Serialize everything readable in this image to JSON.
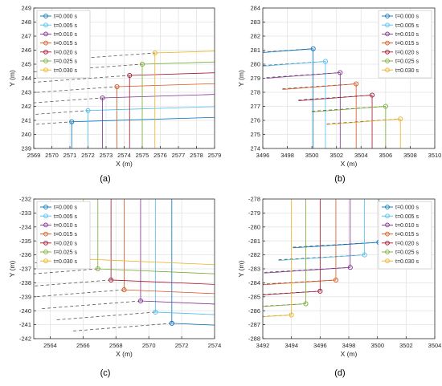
{
  "figure": {
    "colors": [
      "#0072BD",
      "#4DBEEE",
      "#7E2F8E",
      "#D95319",
      "#A2142F",
      "#77AC30",
      "#EDB120"
    ]
  },
  "chart_data": [
    {
      "type": "line",
      "panel_label": "(a)",
      "xlabel": "X (m)",
      "ylabel": "Y (m)",
      "xlim": [
        2569,
        2579
      ],
      "ylim": [
        239,
        249
      ],
      "xticks": [
        2569,
        2570,
        2571,
        2572,
        2573,
        2574,
        2575,
        2576,
        2577,
        2578,
        2579
      ],
      "yticks": [
        239,
        240,
        241,
        242,
        243,
        244,
        245,
        246,
        247,
        248,
        249
      ],
      "grid": true,
      "legend_position": "top-left",
      "traces": {
        "dashed_dx": -6,
        "solid_dx": 10,
        "solid_dy": 0.4,
        "vertical": "down"
      },
      "series": [
        {
          "name": "t=0.000 s",
          "x": 2571.1,
          "y": 240.9
        },
        {
          "name": "t=0.005 s",
          "x": 2572.0,
          "y": 241.7
        },
        {
          "name": "t=0.010 s",
          "x": 2572.8,
          "y": 242.6
        },
        {
          "name": "t=0.015 s",
          "x": 2573.6,
          "y": 243.4
        },
        {
          "name": "t=0.020 s",
          "x": 2574.3,
          "y": 244.2
        },
        {
          "name": "t=0.025 s",
          "x": 2575.0,
          "y": 245.0
        },
        {
          "name": "t=0.030 s",
          "x": 2575.7,
          "y": 245.8
        }
      ]
    },
    {
      "type": "line",
      "panel_label": "(b)",
      "xlabel": "X (m)",
      "ylabel": "Y (m)",
      "xlim": [
        3496,
        3510
      ],
      "ylim": [
        274,
        284
      ],
      "xticks": [
        3496,
        3498,
        3500,
        3502,
        3504,
        3506,
        3508,
        3510
      ],
      "yticks": [
        274,
        275,
        276,
        277,
        278,
        279,
        280,
        281,
        282,
        283,
        284
      ],
      "grid": true,
      "legend_position": "top-right",
      "traces": {
        "dashed_dx": -6,
        "solid_dx": -6,
        "solid_dy": -0.4,
        "vertical": "down"
      },
      "series": [
        {
          "name": "t=0.000 s",
          "x": 3500.1,
          "y": 281.1
        },
        {
          "name": "t=0.005 s",
          "x": 3501.1,
          "y": 280.2
        },
        {
          "name": "t=0.010 s",
          "x": 3502.3,
          "y": 279.4
        },
        {
          "name": "t=0.015 s",
          "x": 3503.6,
          "y": 278.6
        },
        {
          "name": "t=0.020 s",
          "x": 3504.9,
          "y": 277.8
        },
        {
          "name": "t=0.025 s",
          "x": 3506.0,
          "y": 277.0
        },
        {
          "name": "t=0.030 s",
          "x": 3507.2,
          "y": 276.1
        }
      ]
    },
    {
      "type": "line",
      "panel_label": "(c)",
      "xlabel": "X (m)",
      "ylabel": "Y (m)",
      "xlim": [
        2563,
        2574
      ],
      "ylim": [
        -242,
        -232
      ],
      "xticks": [
        2564,
        2566,
        2568,
        2570,
        2572,
        2574
      ],
      "yticks": [
        -242,
        -241,
        -240,
        -239,
        -238,
        -237,
        -236,
        -235,
        -234,
        -233,
        -232
      ],
      "grid": true,
      "legend_position": "top-left",
      "traces": {
        "dashed_dx": -6,
        "solid_dx": 8,
        "solid_dy": -0.4,
        "vertical": "up"
      },
      "series": [
        {
          "name": "t=0.000 s",
          "x": 2571.4,
          "y": -240.9
        },
        {
          "name": "t=0.005 s",
          "x": 2570.4,
          "y": -240.1
        },
        {
          "name": "t=0.010 s",
          "x": 2569.5,
          "y": -239.3
        },
        {
          "name": "t=0.015 s",
          "x": 2568.5,
          "y": -238.5
        },
        {
          "name": "t=0.020 s",
          "x": 2567.7,
          "y": -237.8
        },
        {
          "name": "t=0.025 s",
          "x": 2566.9,
          "y": -237.0
        },
        {
          "name": "t=0.030 s",
          "x": 2566.0,
          "y": -236.3
        }
      ]
    },
    {
      "type": "line",
      "panel_label": "(d)",
      "xlabel": "X (m)",
      "ylabel": "Y (m)",
      "xlim": [
        3492,
        3504
      ],
      "ylim": [
        -288,
        -278
      ],
      "xticks": [
        3492,
        3494,
        3496,
        3498,
        3500,
        3502,
        3504
      ],
      "yticks": [
        -288,
        -287,
        -286,
        -285,
        -284,
        -283,
        -282,
        -281,
        -280,
        -279,
        -278
      ],
      "grid": true,
      "legend_position": "top-right",
      "traces": {
        "dashed_dx": -6,
        "solid_dx": -6,
        "solid_dy": -0.4,
        "vertical": "up"
      },
      "series": [
        {
          "name": "t=0.000 s",
          "x": 3500.1,
          "y": -281.1
        },
        {
          "name": "t=0.005 s",
          "x": 3499.1,
          "y": -282.0
        },
        {
          "name": "t=0.010 s",
          "x": 3498.1,
          "y": -282.9
        },
        {
          "name": "t=0.015 s",
          "x": 3497.1,
          "y": -283.8
        },
        {
          "name": "t=0.020 s",
          "x": 3496.0,
          "y": -284.6
        },
        {
          "name": "t=0.025 s",
          "x": 3495.0,
          "y": -285.5
        },
        {
          "name": "t=0.030 s",
          "x": 3494.0,
          "y": -286.3
        }
      ]
    }
  ]
}
